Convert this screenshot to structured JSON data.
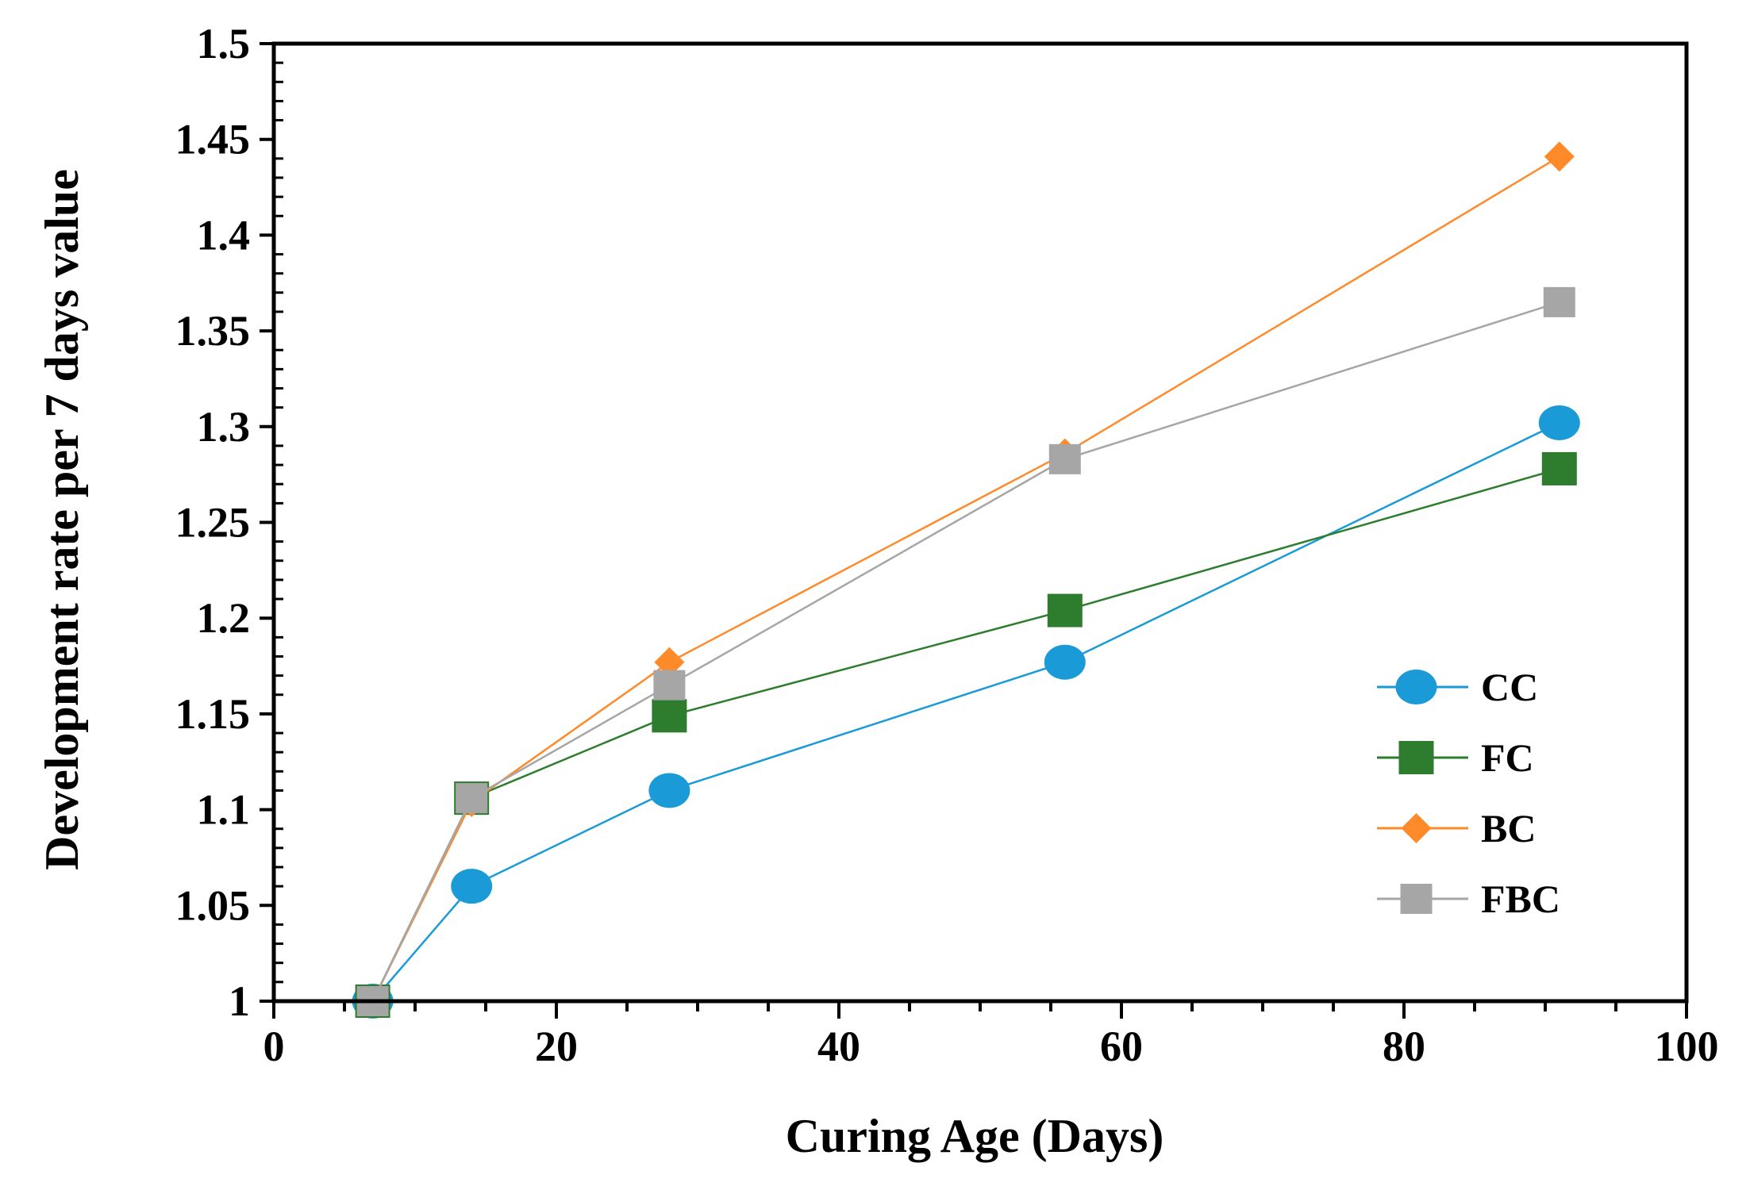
{
  "chart_data": {
    "type": "line",
    "title": "",
    "xlabel": "Curing Age  (Days)",
    "ylabel": "Development rate per 7 days value",
    "xlim": [
      0,
      100
    ],
    "ylim": [
      1,
      1.5
    ],
    "xticks": [
      0,
      20,
      40,
      60,
      80,
      100
    ],
    "xtick_labels": [
      "0",
      "20",
      "40",
      "60",
      "80",
      "100"
    ],
    "yticks": [
      1,
      1.05,
      1.1,
      1.15,
      1.2,
      1.25,
      1.3,
      1.35,
      1.4,
      1.45,
      1.5
    ],
    "ytick_labels": [
      "1",
      "1.05",
      "1.1",
      "1.15",
      "1.2",
      "1.25",
      "1.3",
      "1.35",
      "1.4",
      "1.45",
      "1.5"
    ],
    "grid": false,
    "legend_position": "right",
    "x": [
      7,
      14,
      28,
      56,
      91
    ],
    "series": [
      {
        "name": "CC",
        "values": [
          1.0,
          1.06,
          1.11,
          1.177,
          1.302
        ],
        "color": "#1a9ad6",
        "marker": "circle"
      },
      {
        "name": "FC",
        "values": [
          1.0,
          1.106,
          1.149,
          1.204,
          1.278
        ],
        "color": "#2e7d2e",
        "marker": "square"
      },
      {
        "name": "BC",
        "values": [
          1.0,
          1.104,
          1.177,
          1.286,
          1.441
        ],
        "color": "#ff8a2a",
        "marker": "diamond"
      },
      {
        "name": "FBC",
        "values": [
          1.0,
          1.106,
          1.165,
          1.283,
          1.365
        ],
        "color": "#a6a6a6",
        "marker": "square-small"
      }
    ]
  }
}
